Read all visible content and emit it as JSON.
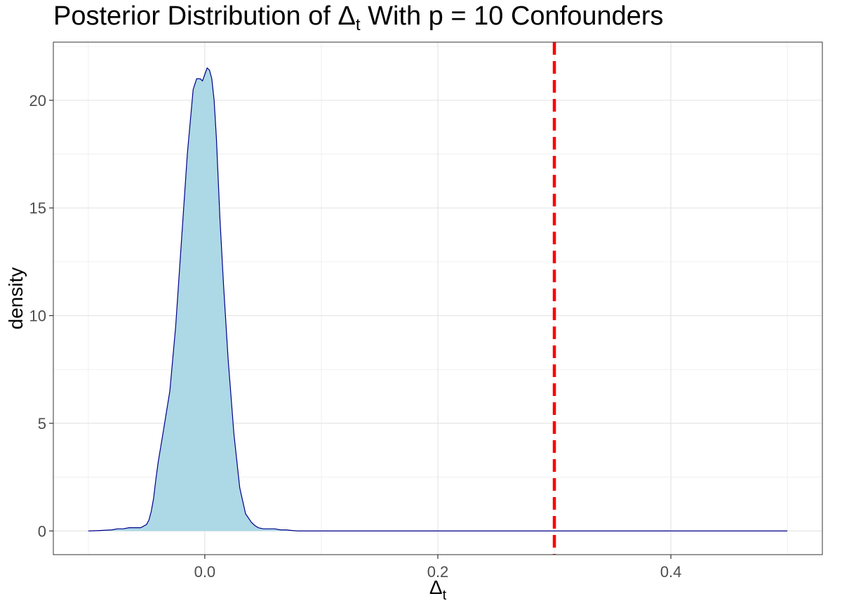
{
  "chart_data": {
    "type": "area",
    "title": {
      "prefix": "Posterior Distribution of ",
      "symbol": "Δ",
      "subscript": "t",
      "suffix": " With p = 10 Confounders"
    },
    "xlabel": {
      "symbol": "Δ",
      "subscript": "t"
    },
    "ylabel": "density",
    "xlim": [
      -0.1,
      0.5
    ],
    "ylim": [
      0,
      22
    ],
    "x_ticks": [
      0.0,
      0.2,
      0.4
    ],
    "x_tick_labels": [
      "0.0",
      "0.2",
      "0.4"
    ],
    "y_ticks": [
      0,
      5,
      10,
      15,
      20
    ],
    "y_tick_labels": [
      "0",
      "5",
      "10",
      "15",
      "20"
    ],
    "grid": true,
    "density_curve": {
      "fill_color": "#add8e6",
      "line_color": "#00008b",
      "x": [
        -0.1,
        -0.09,
        -0.08,
        -0.075,
        -0.07,
        -0.065,
        -0.06,
        -0.055,
        -0.05,
        -0.048,
        -0.046,
        -0.044,
        -0.042,
        -0.04,
        -0.036,
        -0.03,
        -0.025,
        -0.02,
        -0.015,
        -0.01,
        -0.007,
        -0.004,
        -0.002,
        0.0,
        0.002,
        0.004,
        0.006,
        0.008,
        0.01,
        0.013,
        0.016,
        0.02,
        0.025,
        0.03,
        0.035,
        0.04,
        0.043,
        0.046,
        0.05,
        0.055,
        0.06,
        0.065,
        0.07,
        0.075,
        0.08,
        0.5
      ],
      "y": [
        0.0,
        0.02,
        0.05,
        0.1,
        0.1,
        0.15,
        0.15,
        0.15,
        0.3,
        0.5,
        0.9,
        1.5,
        2.4,
        3.2,
        4.5,
        6.5,
        9.5,
        13.5,
        17.5,
        20.5,
        21.0,
        21.0,
        20.9,
        21.2,
        21.5,
        21.4,
        21.0,
        20.0,
        18.2,
        14.5,
        11.5,
        8.0,
        4.5,
        2.0,
        0.8,
        0.4,
        0.25,
        0.15,
        0.1,
        0.1,
        0.1,
        0.05,
        0.05,
        0.02,
        0.0,
        0.0
      ]
    },
    "reference_line": {
      "x": 0.3,
      "color": "#ff0000",
      "style": "dashed"
    }
  }
}
